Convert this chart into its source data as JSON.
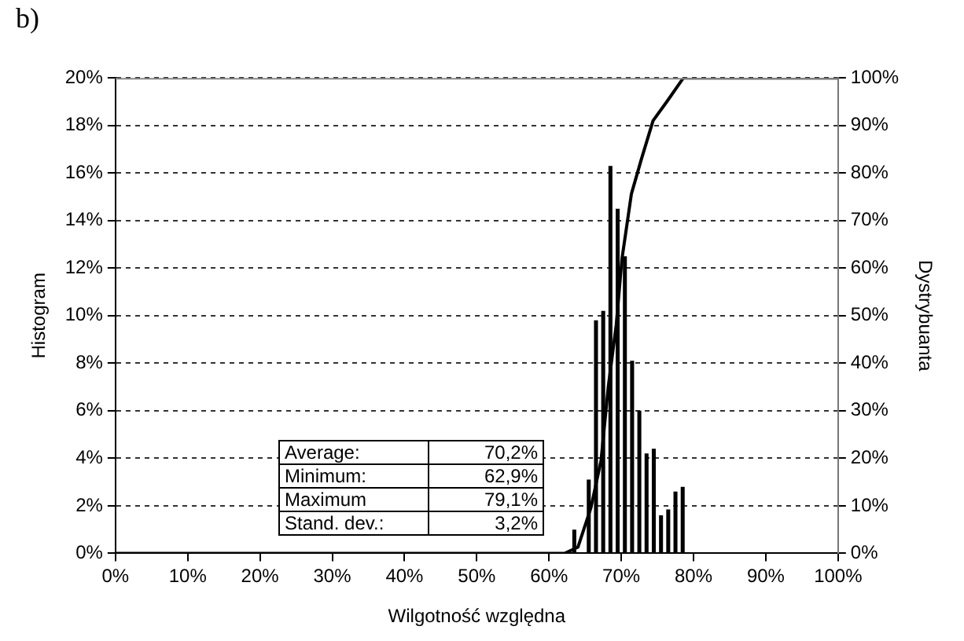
{
  "chart_data": {
    "type": "histogram",
    "title": "b)",
    "xlabel": "Wilgotność względna",
    "ylabel": "Histogram",
    "y2label": "Dystrybuanta",
    "bins": [
      63,
      64,
      65,
      66,
      67,
      68,
      69,
      70,
      71,
      72,
      73,
      74,
      75,
      76,
      77,
      78,
      79
    ],
    "values": [
      1.0,
      0,
      3.1,
      9.8,
      10.2,
      16.3,
      14.5,
      12.5,
      8.1,
      6.0,
      4.2,
      4.4,
      1.6,
      1.85,
      2.6,
      2.8
    ],
    "color": "#000000",
    "series": [
      {
        "type": "line",
        "axis": "y2",
        "color": "#000000",
        "x": [
          0,
          62.2,
          64.0,
          65.8,
          67.2,
          68.2,
          69.3,
          70.1,
          71.4,
          72.8,
          74.4,
          76.3,
          78.6,
          100
        ],
        "values": [
          0,
          0,
          1.3,
          9.6,
          19.5,
          35,
          48,
          62,
          75.6,
          83,
          91,
          95,
          100,
          100
        ]
      }
    ],
    "xlim": [
      0,
      100
    ],
    "xticks": [
      {
        "value": 0,
        "label": "0%"
      },
      {
        "value": 10,
        "label": "10%"
      },
      {
        "value": 20,
        "label": "20%"
      },
      {
        "value": 30,
        "label": "30%"
      },
      {
        "value": 40,
        "label": "40%"
      },
      {
        "value": 50,
        "label": "50%"
      },
      {
        "value": 60,
        "label": "60%"
      },
      {
        "value": 70,
        "label": "70%"
      },
      {
        "value": 80,
        "label": "80%"
      },
      {
        "value": 90,
        "label": "90%"
      },
      {
        "value": 100,
        "label": "100%"
      }
    ],
    "ylim": [
      0,
      20
    ],
    "yticks": [
      {
        "value": 0,
        "label": "0%"
      },
      {
        "value": 2,
        "label": "2%"
      },
      {
        "value": 4,
        "label": "4%"
      },
      {
        "value": 6,
        "label": "6%"
      },
      {
        "value": 8,
        "label": "8%"
      },
      {
        "value": 10,
        "label": "10%"
      },
      {
        "value": 12,
        "label": "12%"
      },
      {
        "value": 14,
        "label": "14%"
      },
      {
        "value": 16,
        "label": "16%"
      },
      {
        "value": 18,
        "label": "18%"
      },
      {
        "value": 20,
        "label": "20%"
      }
    ],
    "y2lim": [
      0,
      100
    ],
    "y2ticks": [
      {
        "value": 0,
        "label": "0%"
      },
      {
        "value": 10,
        "label": "10%"
      },
      {
        "value": 20,
        "label": "20%"
      },
      {
        "value": 30,
        "label": "30%"
      },
      {
        "value": 40,
        "label": "40%"
      },
      {
        "value": 50,
        "label": "50%"
      },
      {
        "value": 60,
        "label": "60%"
      },
      {
        "value": 70,
        "label": "70%"
      },
      {
        "value": 80,
        "label": "80%"
      },
      {
        "value": 90,
        "label": "90%"
      },
      {
        "value": 100,
        "label": "100%"
      }
    ],
    "grid": "y",
    "legend": false,
    "marker": "none",
    "line_style": "solid",
    "annotations": [
      "Average:",
      "70,2%",
      "Minimum:",
      "62,9%",
      "Maximum",
      "79,1%",
      "Stand. dev.:",
      "3,2%"
    ]
  }
}
